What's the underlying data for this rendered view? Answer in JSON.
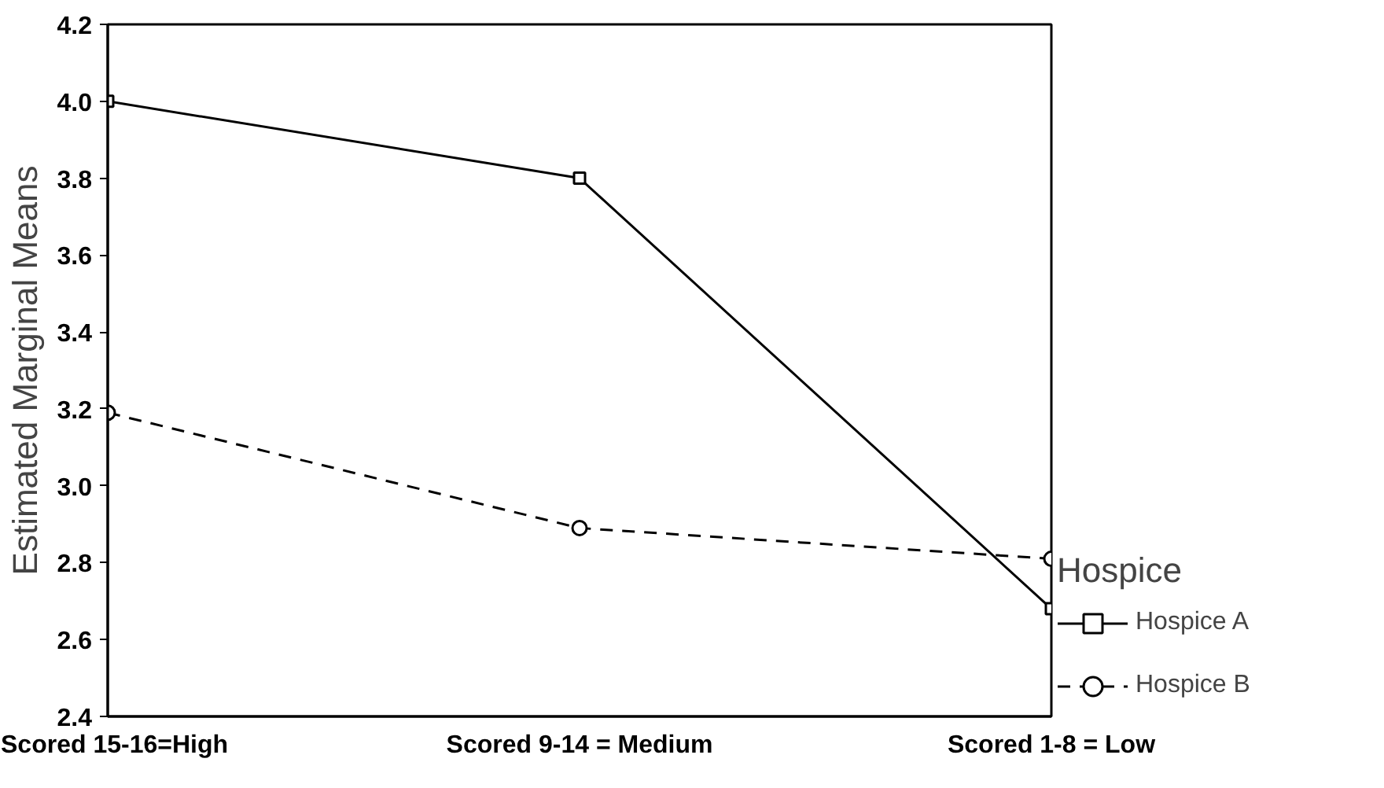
{
  "chart_data": {
    "type": "line",
    "ylabel": "Estimated Marginal Means",
    "legend_title": "Hospice",
    "legend": "right",
    "categories": [
      "Scored 15-16=High",
      "Scored 9-14 = Medium",
      "Scored 1-8 = Low"
    ],
    "ylim": [
      2.4,
      4.2
    ],
    "yticks": [
      {
        "value": 2.4,
        "label": "2.4"
      },
      {
        "value": 2.6,
        "label": "2.6"
      },
      {
        "value": 2.8,
        "label": "2.8"
      },
      {
        "value": 3.0,
        "label": "3.0"
      },
      {
        "value": 3.2,
        "label": "3.2"
      },
      {
        "value": 3.4,
        "label": "3.4"
      },
      {
        "value": 3.6,
        "label": "3.6"
      },
      {
        "value": 3.8,
        "label": "3.8"
      },
      {
        "value": 4.0,
        "label": "4.0"
      },
      {
        "value": 4.2,
        "label": "4.2"
      }
    ],
    "grid": false,
    "series": [
      {
        "name": "Hospice A",
        "color": "#000000",
        "marker": "square",
        "line_style": "solid",
        "values": [
          4.0,
          3.8,
          2.68
        ]
      },
      {
        "name": "Hospice B",
        "color": "#000000",
        "marker": "circle",
        "line_style": "dashed",
        "values": [
          3.19,
          2.89,
          2.81
        ]
      }
    ]
  }
}
